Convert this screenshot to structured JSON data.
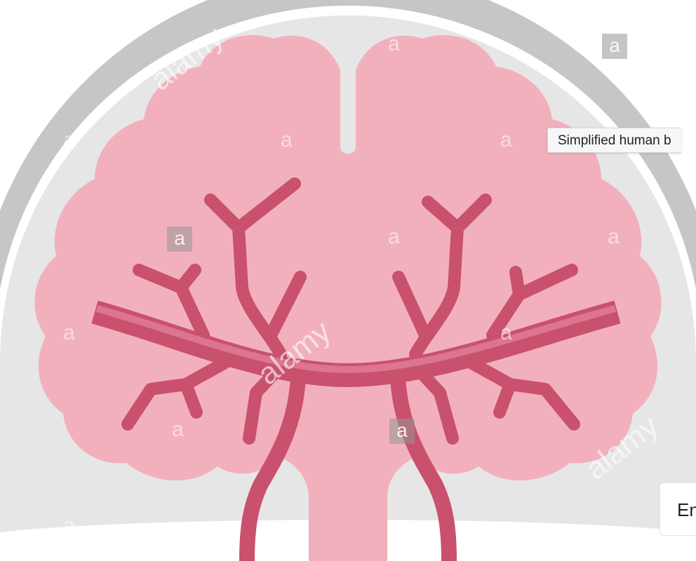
{
  "tooltip": {
    "text": "Simplified human b"
  },
  "language_button": {
    "label": "En"
  },
  "watermark": {
    "letter": "a",
    "brand": "alamy"
  },
  "colors": {
    "skull_outer": "#c6c6c8",
    "skull_inner": "#e6e6e7",
    "brain": "#f2b0bd",
    "vessel": "#c9516d",
    "vessel_highlight": "#dd7590"
  }
}
